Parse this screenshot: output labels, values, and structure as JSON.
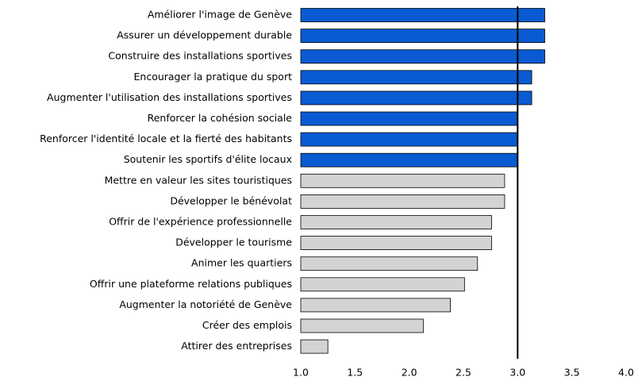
{
  "chart_data": {
    "type": "barh",
    "categories": [
      "Améliorer l'image de Genève",
      "Assurer un développement durable",
      "Construire des installations sportives",
      "Encourager la pratique du sport",
      "Augmenter l'utilisation des installations sportives",
      "Renforcer la cohésion sociale",
      "Renforcer l'identité locale et la fierté des habitants",
      "Soutenir les sportifs d'élite locaux",
      "Mettre en valeur les sites touristiques",
      "Développer le bénévolat",
      "Offrir de l'expérience professionnelle",
      "Développer le tourisme",
      "Animer les quartiers",
      "Offrir une plateforme relations publiques",
      "Augmenter la notoriété de Genève",
      "Créer des emplois",
      "Attirer des entreprises"
    ],
    "values": [
      3.25,
      3.25,
      3.25,
      3.13,
      3.13,
      3.0,
      3.0,
      3.0,
      2.88,
      2.88,
      2.76,
      2.76,
      2.63,
      2.51,
      2.38,
      2.13,
      1.25
    ],
    "colors": [
      "#0a5bd3",
      "#0a5bd3",
      "#0a5bd3",
      "#0a5bd3",
      "#0a5bd3",
      "#0a5bd3",
      "#0a5bd3",
      "#0a5bd3",
      "#d3d3d3",
      "#d3d3d3",
      "#d3d3d3",
      "#d3d3d3",
      "#d3d3d3",
      "#d3d3d3",
      "#d3d3d3",
      "#d3d3d3",
      "#d3d3d3"
    ],
    "xlim": [
      1.0,
      4.0
    ],
    "xticks": [
      {
        "value": 1.0,
        "label": "1.0"
      },
      1.5,
      {
        "value": 2.0,
        "label": "2.0"
      },
      2.5,
      {
        "value": 3.0,
        "label": "3.0"
      },
      3.5,
      {
        "value": 4.0,
        "label": "4.0"
      }
    ],
    "reference_line": 3.0
  }
}
